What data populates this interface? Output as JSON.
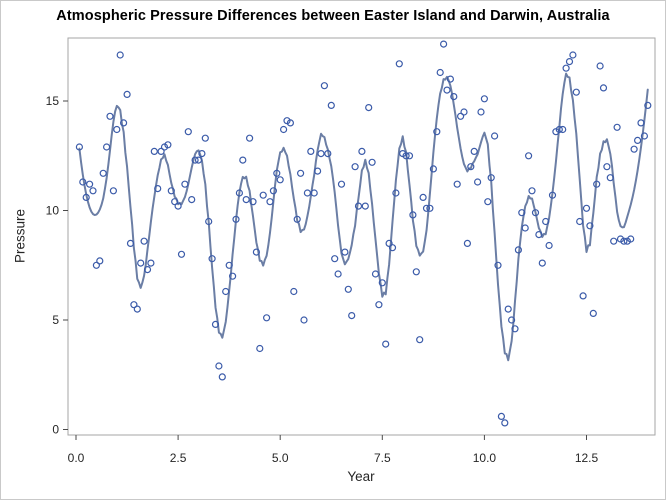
{
  "chart_data": {
    "type": "scatter",
    "overlay": "loess-fit-line",
    "title": "Atmospheric Pressure Differences between Easter Island and Darwin, Australia",
    "xlabel": "Year",
    "ylabel": "Pressure",
    "x_axis": {
      "tick_labels": [
        "0.0",
        "2.5",
        "5.0",
        "7.5",
        "10.0",
        "12.5"
      ],
      "tick_values": [
        0,
        2.5,
        5,
        7.5,
        10,
        12.5
      ],
      "range": [
        -0.2,
        14.2
      ],
      "grid": false
    },
    "y_axis": {
      "tick_labels": [
        "0",
        "5",
        "10",
        "15"
      ],
      "tick_values": [
        0,
        5,
        10,
        15
      ],
      "range": [
        -0.25,
        17.9
      ],
      "grid": false
    },
    "n_points": 168,
    "x_mapping": "year = month_index / 12, month_index = 1..168",
    "pressure": [
      12.9,
      11.3,
      10.6,
      11.2,
      10.9,
      7.5,
      7.7,
      11.7,
      12.9,
      14.3,
      10.9,
      13.7,
      17.1,
      14.0,
      15.3,
      8.5,
      5.7,
      5.5,
      7.6,
      8.6,
      7.3,
      7.6,
      12.7,
      11.0,
      12.7,
      12.9,
      13.0,
      10.9,
      10.4,
      10.2,
      8.0,
      11.2,
      13.6,
      10.5,
      12.3,
      12.3,
      12.6,
      13.3,
      9.5,
      7.8,
      4.8,
      2.9,
      2.4,
      6.3,
      7.5,
      7.0,
      9.6,
      10.8,
      12.3,
      10.5,
      13.3,
      10.4,
      8.1,
      3.7,
      10.7,
      5.1,
      10.4,
      10.9,
      11.7,
      11.4,
      13.7,
      14.1,
      14.0,
      6.3,
      9.6,
      11.7,
      5.0,
      10.8,
      12.7,
      10.8,
      11.8,
      12.6,
      15.7,
      12.6,
      14.8,
      7.8,
      7.1,
      11.2,
      8.1,
      6.4,
      5.2,
      12.0,
      10.2,
      12.7,
      10.2,
      14.7,
      12.2,
      7.1,
      5.7,
      6.7,
      3.9,
      8.5,
      8.3,
      10.8,
      16.7,
      12.6,
      12.5,
      12.5,
      9.8,
      7.2,
      4.1,
      10.6,
      10.1,
      10.1,
      11.9,
      13.6,
      16.3,
      17.6,
      15.5,
      16.0,
      15.2,
      11.2,
      14.3,
      14.5,
      8.5,
      12.0,
      12.7,
      11.3,
      14.5,
      15.1,
      10.4,
      11.5,
      13.4,
      7.5,
      0.6,
      0.3,
      5.5,
      5.0,
      4.6,
      8.2,
      9.9,
      9.2,
      12.5,
      10.9,
      9.9,
      8.9,
      7.6,
      9.5,
      8.4,
      10.7,
      13.6,
      13.7,
      13.7,
      16.5,
      16.8,
      17.1,
      15.4,
      9.5,
      6.1,
      10.1,
      9.3,
      5.3,
      11.2,
      16.6,
      15.6,
      12.0,
      11.5,
      8.6,
      13.8,
      8.7,
      8.6,
      8.6,
      8.7,
      12.8,
      13.2,
      14.0,
      13.4,
      14.8
    ],
    "loess": {
      "neighbors": 15,
      "degree": 2
    },
    "colors": {
      "marker": "#3B5BA9",
      "fit_line": "#6B7EA5",
      "frame": "#A6A6A6",
      "tick_mark": "#4A4A4A",
      "tick_text": "#262626",
      "title_text": "#000000",
      "background": "#FFFFFF",
      "outer_border": "#C9C9C9"
    }
  }
}
